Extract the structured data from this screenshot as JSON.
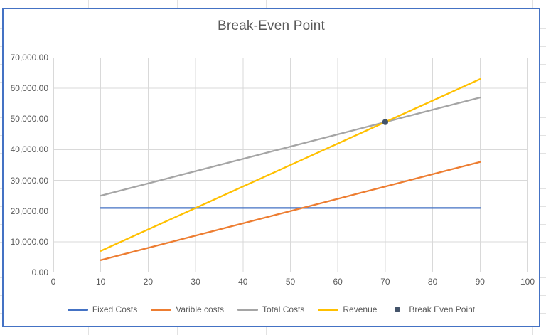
{
  "window": {
    "background": "excel-worksheet"
  },
  "chart_data": {
    "type": "line",
    "title": "Break-Even Point",
    "xlabel": "",
    "ylabel": "",
    "xlim": [
      0,
      100
    ],
    "ylim": [
      0,
      70000
    ],
    "x_ticks": [
      0,
      10,
      20,
      30,
      40,
      50,
      60,
      70,
      80,
      90,
      100
    ],
    "y_ticks": [
      0,
      10000,
      20000,
      30000,
      40000,
      50000,
      60000,
      70000
    ],
    "y_tick_labels": [
      "0.00",
      "10,000.00",
      "20,000.00",
      "30,000.00",
      "40,000.00",
      "50,000.00",
      "60,000.00",
      "70,000.00"
    ],
    "grid": true,
    "legend_position": "bottom",
    "x": [
      10,
      20,
      30,
      40,
      50,
      60,
      70,
      80,
      90
    ],
    "series": [
      {
        "name": "Fixed Costs",
        "color": "#4472C4",
        "values": [
          21000,
          21000,
          21000,
          21000,
          21000,
          21000,
          21000,
          21000,
          21000
        ]
      },
      {
        "name": "Varible costs",
        "color": "#ED7D31",
        "values": [
          4000,
          8000,
          12000,
          16000,
          20000,
          24000,
          28000,
          32000,
          36000
        ]
      },
      {
        "name": "Total Costs",
        "color": "#A5A5A5",
        "values": [
          25000,
          29000,
          33000,
          37000,
          41000,
          45000,
          49000,
          53000,
          57000
        ]
      },
      {
        "name": "Revenue",
        "color": "#FFC000",
        "values": [
          7000,
          14000,
          21000,
          28000,
          35000,
          42000,
          49000,
          56000,
          63000
        ]
      }
    ],
    "points": [
      {
        "name": "Break Even Point",
        "color": "#44546A",
        "x": 70,
        "y": 49000
      }
    ]
  },
  "colors": {
    "chart_border": "#4472C4",
    "gridline": "#D9D9D9",
    "axis_line": "#BFBFBF",
    "text": "#595959",
    "sheet_gridline": "#E2E2E2"
  }
}
